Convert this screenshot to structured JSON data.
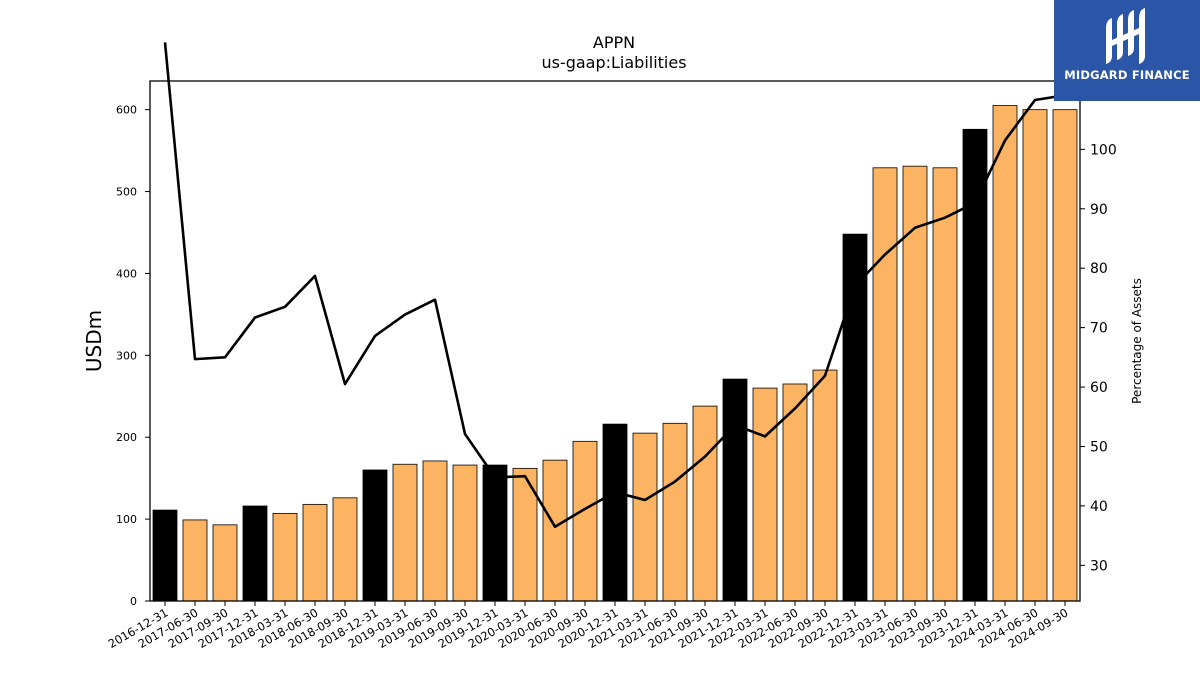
{
  "chart_data": {
    "type": "bar",
    "title": "APPN",
    "subtitle": "us-gaap:Liabilities",
    "ylabel": "USDm",
    "y2label": "Percentage of Assets",
    "ylim": [
      0,
      635
    ],
    "y2lim": [
      24.0,
      111.5
    ],
    "yticks": [
      0,
      100,
      200,
      300,
      400,
      500,
      600
    ],
    "y2ticks": [
      30,
      40,
      50,
      60,
      70,
      80,
      90,
      100,
      110
    ],
    "categories": [
      "2016-12-31",
      "2017-06-30",
      "2017-09-30",
      "2017-12-31",
      "2018-03-31",
      "2018-06-30",
      "2018-09-30",
      "2018-12-31",
      "2019-03-31",
      "2019-06-30",
      "2019-09-30",
      "2019-12-31",
      "2020-03-31",
      "2020-06-30",
      "2020-09-30",
      "2020-12-31",
      "2021-03-31",
      "2021-06-30",
      "2021-09-30",
      "2021-12-31",
      "2022-03-31",
      "2022-06-30",
      "2022-09-30",
      "2022-12-31",
      "2023-03-31",
      "2023-06-30",
      "2023-09-30",
      "2023-12-31",
      "2024-03-31",
      "2024-06-30",
      "2024-09-30"
    ],
    "series": [
      {
        "type": "bar",
        "values": [
          111,
          99,
          93,
          116,
          107,
          118,
          126,
          160,
          167,
          171,
          166,
          166,
          162,
          172,
          195,
          216,
          205,
          217,
          238,
          271,
          260,
          265,
          282,
          448,
          529,
          531,
          529,
          576,
          605,
          600,
          600
        ]
      },
      {
        "type": "line",
        "axis": "right",
        "values": [
          118.0,
          64.7,
          65.0,
          71.7,
          73.5,
          78.7,
          60.5,
          68.6,
          72.2,
          74.7,
          52.1,
          44.8,
          45.0,
          36.5,
          39.5,
          42.3,
          41.0,
          44.1,
          48.3,
          53.6,
          51.7,
          56.4,
          61.9,
          77.0,
          82.3,
          86.8,
          88.5,
          91.0,
          101.5,
          108.3,
          109.1
        ]
      }
    ],
    "colors": {
      "bar_fiscal_year_end": "#000000",
      "bar_quarter": "#fdb462",
      "bar_edge": "#000000",
      "line": "#000000"
    },
    "grid": false,
    "legend": "none"
  },
  "logo": {
    "text": "MIDGARD FINANCE",
    "bg": "#2b56a8"
  }
}
